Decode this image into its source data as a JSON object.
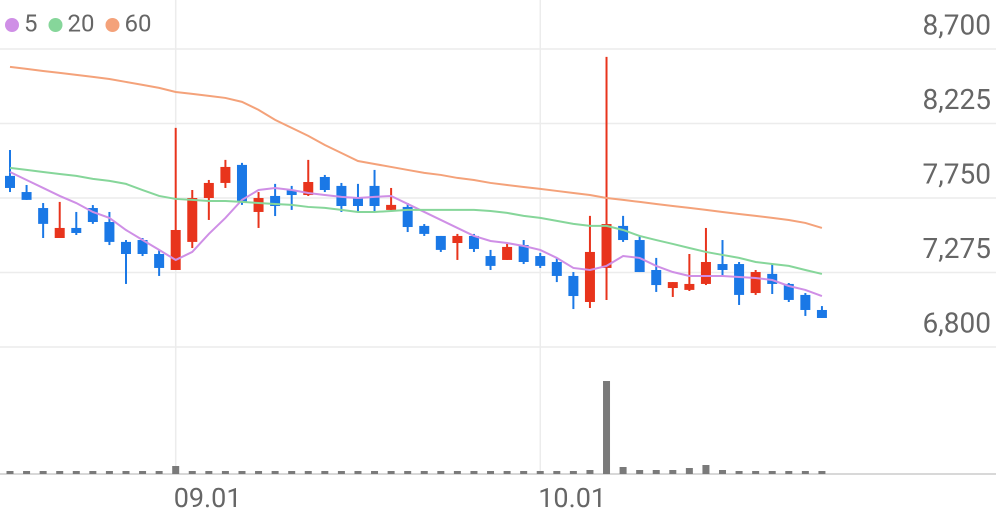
{
  "chart_data": {
    "type": "candlestick",
    "categories": [
      null,
      null,
      null,
      null,
      null,
      null,
      null,
      null,
      null,
      null,
      "09.01",
      null,
      null,
      null,
      null,
      null,
      null,
      null,
      null,
      null,
      null,
      null,
      null,
      null,
      null,
      null,
      null,
      null,
      null,
      null,
      null,
      null,
      "10.01",
      null,
      null,
      null,
      null,
      null,
      null,
      null,
      null,
      null,
      null,
      null,
      null,
      null,
      null,
      null,
      null,
      null
    ],
    "open": [
      7891,
      7788,
      7686,
      7495,
      7559,
      7686,
      7597,
      7470,
      7482,
      7393,
      7291,
      7470,
      7750,
      7846,
      7961,
      7661,
      7763,
      7801,
      7769,
      7884,
      7827,
      7756,
      7827,
      7674,
      7693,
      7572,
      7508,
      7463,
      7508,
      7380,
      7355,
      7450,
      7380,
      7342,
      7253,
      7087,
      7304,
      7572,
      7482,
      7291,
      7176,
      7164,
      7202,
      7329,
      7329,
      7144,
      7266,
      7202,
      7132,
      7036
    ],
    "high": [
      8056,
      7833,
      7718,
      7725,
      7661,
      7705,
      7661,
      7482,
      7495,
      7419,
      8197,
      7801,
      7865,
      7993,
      7974,
      7788,
      7840,
      7827,
      7993,
      7897,
      7846,
      7840,
      7929,
      7814,
      7718,
      7584,
      7508,
      7521,
      7521,
      7419,
      7457,
      7482,
      7400,
      7368,
      7278,
      7636,
      8650,
      7636,
      7508,
      7368,
      7214,
      7393,
      7559,
      7482,
      7342,
      7291,
      7329,
      7208,
      7144,
      7061
    ],
    "low": [
      7788,
      7738,
      7495,
      7495,
      7514,
      7585,
      7450,
      7202,
      7380,
      7253,
      7291,
      7431,
      7610,
      7814,
      7706,
      7559,
      7635,
      7674,
      7763,
      7788,
      7661,
      7661,
      7661,
      7674,
      7533,
      7508,
      7406,
      7355,
      7406,
      7291,
      7355,
      7329,
      7304,
      7214,
      7042,
      7049,
      7100,
      7470,
      7278,
      7151,
      7119,
      7157,
      7195,
      7253,
      7068,
      7132,
      7138,
      7087,
      6998,
      6985
    ],
    "close": [
      7814,
      7738,
      7585,
      7559,
      7527,
      7597,
      7470,
      7393,
      7393,
      7304,
      7546,
      7750,
      7846,
      7948,
      7725,
      7750,
      7699,
      7769,
      7852,
      7801,
      7699,
      7699,
      7699,
      7706,
      7565,
      7521,
      7419,
      7508,
      7425,
      7317,
      7438,
      7342,
      7317,
      7253,
      7125,
      7406,
      7584,
      7482,
      7278,
      7195,
      7214,
      7202,
      7342,
      7291,
      7132,
      7278,
      7202,
      7100,
      7036,
      6985
    ],
    "up_color": "#e8341c",
    "down_color": "#1a78e6",
    "moving_averages": [
      {
        "name": "5",
        "color": "#cf8fe6",
        "values": [
          7916,
          7865,
          7814,
          7763,
          7718,
          7661,
          7623,
          7546,
          7482,
          7419,
          7355,
          7406,
          7521,
          7623,
          7738,
          7801,
          7814,
          7801,
          7782,
          7769,
          7757,
          7750,
          7757,
          7763,
          7712,
          7661,
          7610,
          7559,
          7508,
          7476,
          7463,
          7444,
          7419,
          7368,
          7304,
          7291,
          7317,
          7380,
          7368,
          7317,
          7278,
          7253,
          7253,
          7253,
          7246,
          7240,
          7227,
          7189,
          7164,
          7125
        ]
      },
      {
        "name": "20",
        "color": "#86d69a",
        "values": [
          7942,
          7929,
          7916,
          7903,
          7891,
          7872,
          7859,
          7840,
          7801,
          7763,
          7744,
          7738,
          7731,
          7731,
          7725,
          7718,
          7712,
          7706,
          7693,
          7687,
          7674,
          7661,
          7661,
          7667,
          7674,
          7674,
          7674,
          7674,
          7674,
          7667,
          7655,
          7636,
          7623,
          7604,
          7585,
          7572,
          7572,
          7546,
          7508,
          7482,
          7457,
          7431,
          7406,
          7387,
          7368,
          7342,
          7329,
          7317,
          7291,
          7266
        ]
      },
      {
        "name": "60",
        "color": "#f4a27a",
        "values": [
          8586,
          8573,
          8560,
          8548,
          8535,
          8522,
          8509,
          8490,
          8471,
          8452,
          8426,
          8414,
          8401,
          8388,
          8363,
          8312,
          8248,
          8197,
          8146,
          8088,
          8037,
          7986,
          7967,
          7948,
          7929,
          7910,
          7897,
          7878,
          7865,
          7846,
          7833,
          7820,
          7808,
          7795,
          7782,
          7769,
          7750,
          7738,
          7725,
          7712,
          7699,
          7687,
          7674,
          7661,
          7648,
          7636,
          7623,
          7610,
          7591,
          7559
        ]
      }
    ],
    "volume": {
      "color": "#7a7a7a",
      "ylim": [
        0,
        127
      ],
      "values": [
        3,
        3,
        3,
        3,
        3,
        3,
        3,
        3,
        3,
        3,
        8,
        3,
        3,
        3,
        3,
        3,
        3,
        3,
        3,
        3,
        3,
        3,
        3,
        3,
        3,
        3,
        3,
        3,
        3,
        3,
        3,
        3,
        3,
        3,
        3,
        4,
        93,
        7,
        4,
        4,
        4,
        6,
        9,
        4,
        3,
        3,
        3,
        3,
        3,
        3
      ]
    },
    "ylim": [
      6800,
      8700
    ],
    "yticks": [
      {
        "value": 8700,
        "label": "8,700"
      },
      {
        "value": 8225,
        "label": "8,225"
      },
      {
        "value": 7750,
        "label": "7,750"
      },
      {
        "value": 7275,
        "label": "7,275"
      },
      {
        "value": 6800,
        "label": "6,800"
      }
    ]
  }
}
